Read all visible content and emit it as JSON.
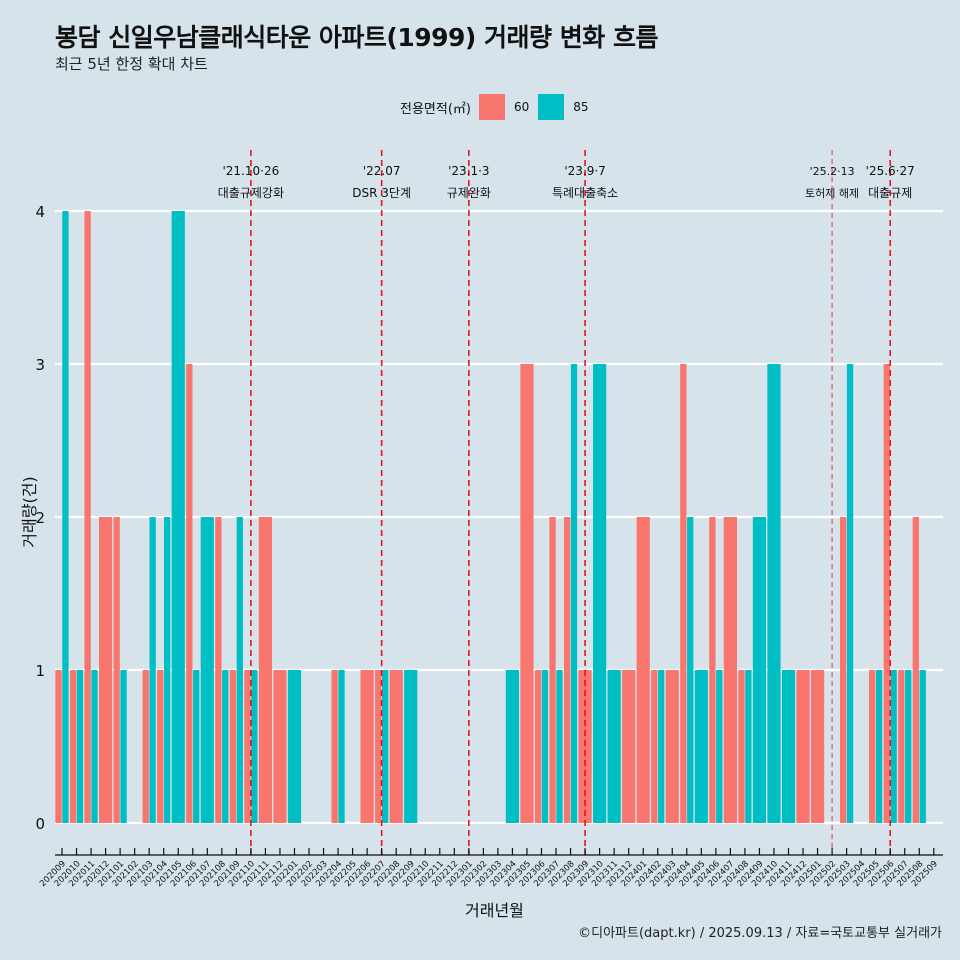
{
  "title": "봉담 신일우남클래식타운 아파트(1999) 거래량 변화 흐름",
  "subtitle": "최근 5년 한정 확대 차트",
  "caption": "©디아파트(dapt.kr) / 2025.09.13 / 자료=국토교통부 실거래가",
  "colors": {
    "s60": "#f8766d",
    "s85": "#00bfc4",
    "event": "#e8141c",
    "grid": "#ffffff",
    "background": "#d6e3eb"
  },
  "chart_data": {
    "type": "bar",
    "title": "봉담 신일우남클래식타운 아파트(1999) 거래량 변화 흐름",
    "xlabel": "거래년월",
    "ylabel": "거래량(건)",
    "ylim": [
      0,
      4
    ],
    "yticks": [
      "0",
      "1",
      "2",
      "3",
      "4"
    ],
    "grid": true,
    "legend": {
      "title": "전용면적(㎡)",
      "position": "top",
      "entries": [
        "60",
        "85"
      ]
    },
    "categories": [
      "202009",
      "202010",
      "202011",
      "202012",
      "202101",
      "202102",
      "202103",
      "202104",
      "202105",
      "202106",
      "202107",
      "202108",
      "202109",
      "202110",
      "202111",
      "202112",
      "202201",
      "202202",
      "202203",
      "202204",
      "202205",
      "202206",
      "202207",
      "202208",
      "202209",
      "202210",
      "202211",
      "202212",
      "202301",
      "202302",
      "202303",
      "202304",
      "202305",
      "202306",
      "202307",
      "202308",
      "202309",
      "202310",
      "202311",
      "202312",
      "202401",
      "202402",
      "202403",
      "202404",
      "202405",
      "202406",
      "202407",
      "202408",
      "202409",
      "202410",
      "202411",
      "202412",
      "202501",
      "202502",
      "202503",
      "202504",
      "202505",
      "202506",
      "202507",
      "202508",
      "202509"
    ],
    "series": [
      {
        "name": "60",
        "values": [
          1,
          1,
          4,
          2,
          2,
          0,
          1,
          1,
          0,
          3,
          0,
          2,
          1,
          1,
          2,
          1,
          0,
          0,
          0,
          1,
          0,
          1,
          1,
          1,
          0,
          0,
          0,
          0,
          0,
          0,
          0,
          0,
          3,
          1,
          2,
          2,
          1,
          0,
          0,
          1,
          2,
          1,
          1,
          3,
          0,
          2,
          2,
          1,
          0,
          0,
          0,
          1,
          1,
          0,
          2,
          0,
          1,
          3,
          1,
          2,
          0
        ]
      },
      {
        "name": "85",
        "values": [
          4,
          1,
          1,
          0,
          1,
          0,
          2,
          2,
          4,
          1,
          2,
          1,
          2,
          1,
          0,
          0,
          1,
          0,
          0,
          1,
          0,
          0,
          1,
          0,
          1,
          0,
          0,
          0,
          0,
          0,
          0,
          1,
          0,
          1,
          1,
          3,
          0,
          3,
          1,
          0,
          0,
          1,
          0,
          2,
          1,
          1,
          0,
          1,
          2,
          3,
          1,
          0,
          0,
          0,
          3,
          0,
          1,
          1,
          1,
          1,
          0
        ]
      }
    ],
    "events": [
      {
        "month": "202110",
        "date": "'21.10·26",
        "label": "대출규제강화",
        "style": "major"
      },
      {
        "month": "202207",
        "date": "'22.07",
        "label": "DSR 3단계",
        "style": "major"
      },
      {
        "month": "202301",
        "date": "'23.1·3",
        "label": "규제완화",
        "style": "major"
      },
      {
        "month": "202309",
        "date": "'23.9·7",
        "label": "특례대출축소",
        "style": "major"
      },
      {
        "month": "202502",
        "date": "'25.2·13",
        "label": "토허제 해제",
        "style": "minor"
      },
      {
        "month": "202506",
        "date": "'25.6·27",
        "label": "대출규제",
        "style": "major"
      }
    ]
  }
}
